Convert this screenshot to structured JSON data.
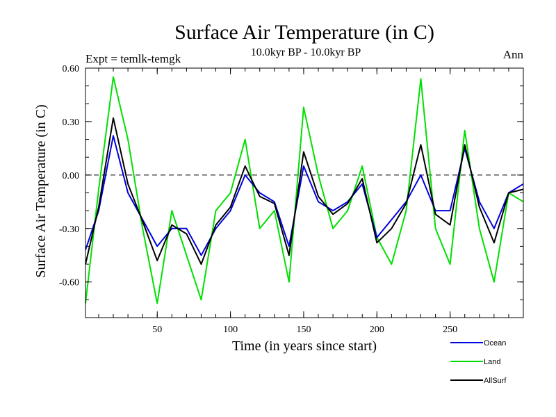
{
  "chart_data": {
    "type": "line",
    "title": "Surface Air Temperature (in C)",
    "subtitle": "10.0kyr BP - 10.0kyr BP",
    "left_label": "Expt = temlk-temgk",
    "right_label": "Ann",
    "xlabel": "Time (in years since start)",
    "ylabel": "Surface Air Temperature (in C)",
    "xlim": [
      1,
      300
    ],
    "ylim": [
      -0.8,
      0.6
    ],
    "xticks": [
      50,
      100,
      150,
      200,
      250
    ],
    "yticks": [
      0.6,
      0.3,
      0.0,
      -0.3,
      -0.6
    ],
    "ytick_labels": [
      "0.60",
      "0.30",
      "0.00",
      "-0.30",
      "-0.60"
    ],
    "reference_line": 0.0,
    "series": [
      {
        "name": "Land",
        "color": "#00e000",
        "x": [
          1,
          10,
          20,
          30,
          40,
          50,
          60,
          70,
          80,
          90,
          100,
          110,
          120,
          130,
          140,
          150,
          160,
          170,
          180,
          190,
          200,
          210,
          220,
          230,
          240,
          250,
          260,
          270,
          280,
          290,
          300
        ],
        "values": [
          -0.72,
          -0.08,
          0.55,
          0.2,
          -0.3,
          -0.72,
          -0.2,
          -0.45,
          -0.7,
          -0.2,
          -0.1,
          0.2,
          -0.3,
          -0.2,
          -0.6,
          0.38,
          0.0,
          -0.3,
          -0.2,
          0.05,
          -0.35,
          -0.5,
          -0.2,
          0.54,
          -0.3,
          -0.5,
          0.25,
          -0.3,
          -0.6,
          -0.1,
          -0.15
        ]
      },
      {
        "name": "Ocean",
        "color": "#0000e0",
        "x": [
          1,
          10,
          20,
          30,
          40,
          50,
          60,
          70,
          80,
          90,
          100,
          110,
          120,
          130,
          140,
          150,
          160,
          170,
          180,
          190,
          200,
          210,
          220,
          230,
          240,
          250,
          260,
          270,
          280,
          290,
          300
        ],
        "values": [
          -0.42,
          -0.2,
          0.22,
          -0.1,
          -0.25,
          -0.4,
          -0.3,
          -0.3,
          -0.45,
          -0.3,
          -0.2,
          0.0,
          -0.1,
          -0.15,
          -0.4,
          0.05,
          -0.15,
          -0.2,
          -0.15,
          -0.05,
          -0.35,
          -0.25,
          -0.15,
          0.0,
          -0.2,
          -0.2,
          0.15,
          -0.15,
          -0.3,
          -0.1,
          -0.05
        ]
      },
      {
        "name": "AllSurf",
        "color": "#000000",
        "x": [
          1,
          10,
          20,
          30,
          40,
          50,
          60,
          70,
          80,
          90,
          100,
          110,
          120,
          130,
          140,
          150,
          160,
          170,
          180,
          190,
          200,
          210,
          220,
          230,
          240,
          250,
          260,
          270,
          280,
          290,
          300
        ],
        "values": [
          -0.5,
          -0.18,
          0.32,
          -0.05,
          -0.26,
          -0.48,
          -0.28,
          -0.33,
          -0.5,
          -0.28,
          -0.18,
          0.05,
          -0.12,
          -0.16,
          -0.45,
          0.13,
          -0.12,
          -0.22,
          -0.16,
          -0.02,
          -0.38,
          -0.3,
          -0.16,
          0.17,
          -0.22,
          -0.28,
          0.17,
          -0.18,
          -0.38,
          -0.1,
          -0.08
        ]
      }
    ],
    "legend_position": "bottom-right"
  }
}
